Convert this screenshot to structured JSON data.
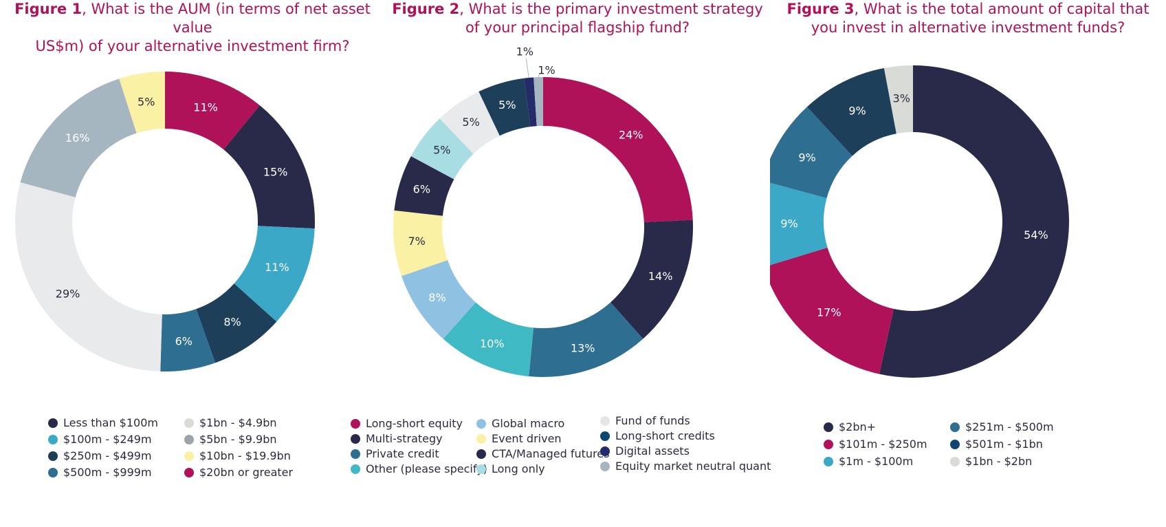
{
  "figures": [
    {
      "title_num": "Figure 1",
      "title_line1": ", What is the AUM (in terms of net asset value",
      "title_line2": "US$m) of your alternative investment firm?"
    },
    {
      "title_num": "Figure 2",
      "title_line1": ", What is the primary investment strategy",
      "title_line2": "of your principal flagship fund?"
    },
    {
      "title_num": "Figure 3",
      "title_line1": ", What is the total amount of capital that",
      "title_line2": "you invest in alternative investment funds?"
    }
  ],
  "chart_data": [
    {
      "type": "pie",
      "donut": true,
      "title": "Figure 1, What is the AUM (in terms of net asset value US$m) of your alternative investment firm?",
      "slices": [
        {
          "label": "$20bn or greater",
          "value": 11,
          "display": "11%",
          "color": "#b0125a",
          "text_color": "#ffffff"
        },
        {
          "label": "Less than $100m",
          "value": 15,
          "display": "15%",
          "color": "#29294a",
          "text_color": "#ffffff"
        },
        {
          "label": "$100m - $249m",
          "value": 11,
          "display": "11%",
          "color": "#3ca8c7",
          "text_color": "#ffffff"
        },
        {
          "label": "$250m - $499m",
          "value": 8,
          "display": "8%",
          "color": "#1d3f5a",
          "text_color": "#ffffff"
        },
        {
          "label": "$500m - $999m",
          "value": 6,
          "display": "6%",
          "color": "#2e6e90",
          "text_color": "#ffffff"
        },
        {
          "label": "$1bn - $4.9bn",
          "value": 29,
          "display": "29%",
          "color": "#e8eaec",
          "text_color": "#2b2b40"
        },
        {
          "label": "$5bn - $9.9bn",
          "value": 16,
          "display": "16%",
          "color": "#a5b6c0",
          "text_color": "#ffffff"
        },
        {
          "label": "$10bn - $19.9bn",
          "value": 5,
          "display": "5%",
          "color": "#fbf1a4",
          "text_color": "#2b2b40"
        }
      ],
      "legend": [
        {
          "label": "Less than $100m",
          "color": "#29294a"
        },
        {
          "label": "$100m - $249m",
          "color": "#3ca8c7"
        },
        {
          "label": "$250m - $499m",
          "color": "#1d3f5a"
        },
        {
          "label": "$500m - $999m",
          "color": "#2e6e90"
        },
        {
          "label": "$1bn - $4.9bn",
          "color": "#d9dcd6"
        },
        {
          "label": "$5bn - $9.9bn",
          "color": "#9ca4aa"
        },
        {
          "label": "$10bn - $19.9bn",
          "color": "#fbf1a4"
        },
        {
          "label": "$20bn or greater",
          "color": "#b0125a"
        }
      ]
    },
    {
      "type": "pie",
      "donut": true,
      "title": "Figure 2, What is the primary investment strategy of your principal flagship fund?",
      "slices": [
        {
          "label": "Long-short equity",
          "value": 24,
          "display": "24%",
          "color": "#b0125a",
          "text_color": "#ffffff"
        },
        {
          "label": "Multi-strategy",
          "value": 14,
          "display": "14%",
          "color": "#29294a",
          "text_color": "#ffffff"
        },
        {
          "label": "Private credit",
          "value": 13,
          "display": "13%",
          "color": "#2e6e90",
          "text_color": "#ffffff"
        },
        {
          "label": "Other (please specify)",
          "value": 10,
          "display": "10%",
          "color": "#3fbac4",
          "text_color": "#ffffff"
        },
        {
          "label": "Global macro",
          "value": 8,
          "display": "8%",
          "color": "#8fc1e2",
          "text_color": "#ffffff"
        },
        {
          "label": "Event driven",
          "value": 7,
          "display": "7%",
          "color": "#fbf1a4",
          "text_color": "#2b2b40"
        },
        {
          "label": "CTA/Managed futures",
          "value": 6,
          "display": "6%",
          "color": "#29294a",
          "text_color": "#ffffff"
        },
        {
          "label": "Long only",
          "value": 5,
          "display": "5%",
          "color": "#a8dde4",
          "text_color": "#2b2b40"
        },
        {
          "label": "Fund of funds",
          "value": 5,
          "display": "5%",
          "color": "#e8eaec",
          "text_color": "#2b2b40"
        },
        {
          "label": "Long-short credits",
          "value": 5,
          "display": "5%",
          "color": "#1d3f5a",
          "text_color": "#ffffff"
        },
        {
          "label": "Digital assets",
          "value": 1,
          "display": "1%",
          "color": "#252a6a",
          "text_color": "#2b2b40",
          "outside": true
        },
        {
          "label": "Equity market neutral quant",
          "value": 1,
          "display": "1%",
          "color": "#a5b6c0",
          "text_color": "#2b2b40",
          "outside": true
        }
      ],
      "legend": [
        {
          "label": "Long-short equity",
          "color": "#b0125a"
        },
        {
          "label": "Multi-strategy",
          "color": "#29294a"
        },
        {
          "label": "Private credit",
          "color": "#2e6e90"
        },
        {
          "label": "Other (please specify)",
          "color": "#3fbac4"
        },
        {
          "label": "Global macro",
          "color": "#8fc1e2"
        },
        {
          "label": "Event driven",
          "color": "#fbf1a4"
        },
        {
          "label": "CTA/Managed futures",
          "color": "#29294a"
        },
        {
          "label": "Long only",
          "color": "#a8dde4"
        },
        {
          "label": "Fund of funds",
          "color": "#e3e6e3"
        },
        {
          "label": "Long-short credits",
          "color": "#0e4670"
        },
        {
          "label": "Digital assets",
          "color": "#252a6a"
        },
        {
          "label": "Equity market neutral quant",
          "color": "#a5b6c0"
        }
      ]
    },
    {
      "type": "pie",
      "donut": true,
      "title": "Figure 3, What is the total amount of capital that you invest in alternative investment funds?",
      "slices": [
        {
          "label": "$2bn+",
          "value": 54,
          "display": "54%",
          "color": "#29294a",
          "text_color": "#ffffff"
        },
        {
          "label": "$101m - $250m",
          "value": 17,
          "display": "17%",
          "color": "#b0125a",
          "text_color": "#ffffff"
        },
        {
          "label": "$1m - $100m",
          "value": 9,
          "display": "9%",
          "color": "#3ca8c7",
          "text_color": "#ffffff"
        },
        {
          "label": "$251m - $500m",
          "value": 9,
          "display": "9%",
          "color": "#2e6e90",
          "text_color": "#ffffff"
        },
        {
          "label": "$501m - $1bn",
          "value": 9,
          "display": "9%",
          "color": "#1d3f5a",
          "text_color": "#ffffff"
        },
        {
          "label": "$1bn - $2bn",
          "value": 3,
          "display": "3%",
          "color": "#d9dcd6",
          "text_color": "#2b2b40"
        }
      ],
      "legend": [
        {
          "label": "$2bn+",
          "color": "#29294a"
        },
        {
          "label": "$101m - $250m",
          "color": "#b0125a"
        },
        {
          "label": "$1m - $100m",
          "color": "#3ca8c7"
        },
        {
          "label": "$251m - $500m",
          "color": "#2e6e90"
        },
        {
          "label": "$501m - $1bn",
          "color": "#0e4670"
        },
        {
          "label": "$1bn - $2bn",
          "color": "#d9dcd6"
        }
      ]
    }
  ]
}
